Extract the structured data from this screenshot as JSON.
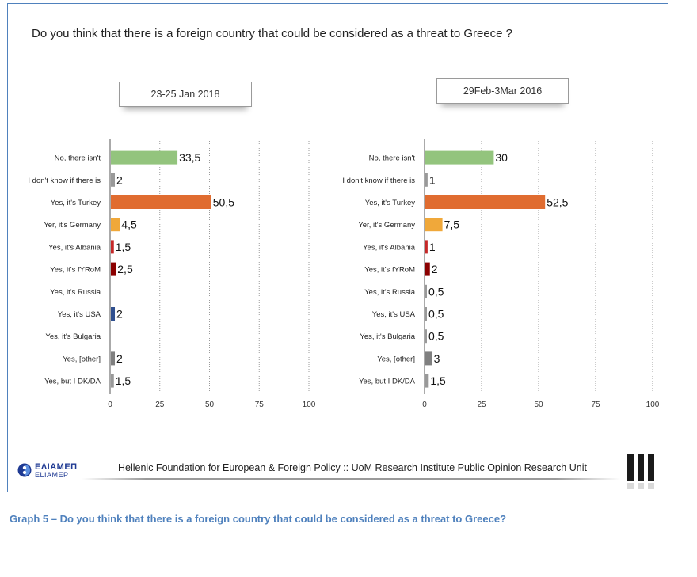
{
  "question": "Do you think that there is a foreign country that could be considered as a threat to Greece ?",
  "footer": {
    "logo_name": "ΕΛΙΑΜΕΠ",
    "logo_sub": "ELIAMEP",
    "text": "Hellenic Foundation for European & Foreign Policy :: UoM Research Institute Public Opinion Research Unit"
  },
  "caption": "Graph 5 – Do you think that there is a foreign country that could be considered as a threat to Greece?",
  "colors": {
    "green": "#93c47d",
    "gray": "#999999",
    "orange": "#e06c30",
    "amber": "#f0a83a",
    "red": "#c62828",
    "darkred": "#8b0000",
    "blue": "#2f4f8f",
    "darkgray": "#7f7f7f",
    "caption": "#4f81bd"
  },
  "chart_data": [
    {
      "type": "bar",
      "orientation": "horizontal",
      "title": "23-25 Jan 2018",
      "categories": [
        "No, there isn't",
        "I don't know if there is",
        "Yes, it's Turkey",
        "Yer, it's Germany",
        "Yes, it's Albania",
        "Yes, it's fYRoM",
        "Yes, it's Russia",
        "Yes, it's USA",
        "Yes, it's Bulgaria",
        "Yes, [other]",
        "Yes, but I DK/DA"
      ],
      "values": [
        33.5,
        2,
        50.5,
        4.5,
        1.5,
        2.5,
        null,
        2,
        null,
        2,
        1.5
      ],
      "labels": [
        "33,5",
        "2",
        "50,5",
        "4,5",
        "1,5",
        "2,5",
        "",
        "2",
        "",
        "2",
        "1,5"
      ],
      "colors": [
        "green",
        "gray",
        "orange",
        "amber",
        "red",
        "darkred",
        "gray",
        "blue",
        "gray",
        "darkgray",
        "gray"
      ],
      "xlim": [
        0,
        100
      ],
      "xticks": [
        "0",
        "25",
        "50",
        "75",
        "100"
      ]
    },
    {
      "type": "bar",
      "orientation": "horizontal",
      "title": "29Feb-3Mar 2016",
      "categories": [
        "No, there isn't",
        "I don't know if there is",
        "Yes, it's Turkey",
        "Yer, it's Germany",
        "Yes, it's Albania",
        "Yes, it's fYRoM",
        "Yes, it's Russia",
        "Yes, it's USA",
        "Yes, it's Bulgaria",
        "Yes, [other]",
        "Yes, but I DK/DA"
      ],
      "values": [
        30,
        1,
        52.5,
        7.5,
        1,
        2,
        0.5,
        0.5,
        0.5,
        3,
        1.5
      ],
      "labels": [
        "30",
        "1",
        "52,5",
        "7,5",
        "1",
        "2",
        "0,5",
        "0,5",
        "0,5",
        "3",
        "1,5"
      ],
      "colors": [
        "green",
        "gray",
        "orange",
        "amber",
        "red",
        "darkred",
        "gray",
        "gray",
        "gray",
        "darkgray",
        "gray"
      ],
      "xlim": [
        0,
        100
      ],
      "xticks": [
        "0",
        "25",
        "50",
        "75",
        "100"
      ]
    }
  ]
}
